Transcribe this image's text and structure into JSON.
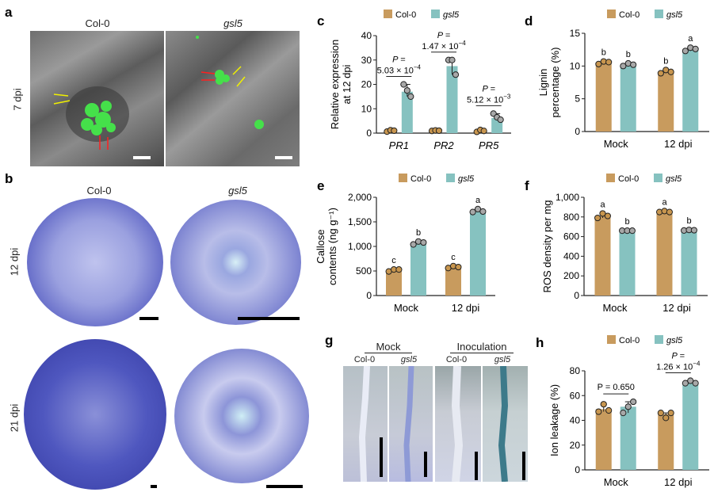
{
  "panels": {
    "a": {
      "label": "a",
      "col_header": "Col-0",
      "mut_header": "gsl5",
      "row_label": "7 dpi"
    },
    "b": {
      "label": "b",
      "col_header": "Col-0",
      "mut_header": "gsl5",
      "row1_label": "12 dpi",
      "row2_label": "21 dpi"
    },
    "g": {
      "label": "g",
      "group1": "Mock",
      "group2": "Inoculation",
      "sub": [
        "Col-0",
        "gsl5",
        "Col-0",
        "gsl5"
      ]
    }
  },
  "colors": {
    "col0": "#c89b5e",
    "gsl5": "#86c2c0",
    "col0_dot": "#c8964f",
    "gsl5_dot": "#a8a8a8"
  },
  "legend": {
    "col0": "Col-0",
    "gsl5": "gsl5"
  },
  "chart_data": [
    {
      "id": "c",
      "panel_label": "c",
      "type": "bar",
      "ylabel": [
        "Relative expression",
        "at 12 dpi"
      ],
      "categories": [
        "PR1",
        "PR2",
        "PR5"
      ],
      "italic_categories": true,
      "ylim": [
        0,
        40
      ],
      "ticks": [
        "0",
        "10",
        "20",
        "30",
        "40"
      ],
      "tick_values": [
        0,
        10,
        20,
        30,
        40
      ],
      "series": [
        {
          "name": "Col-0",
          "values": [
            1,
            1,
            1
          ],
          "points": [
            [
              0.6,
              1.2,
              1.0
            ],
            [
              0.9,
              1.1,
              1.0
            ],
            [
              0.5,
              1.3,
              0.9
            ]
          ]
        },
        {
          "name": "gsl5",
          "values": [
            17,
            27.5,
            6.2
          ],
          "points": [
            [
              20,
              17.5,
              15
            ],
            [
              30,
              30,
              24
            ],
            [
              8,
              6.5,
              5.5
            ]
          ]
        }
      ],
      "annotations": [
        {
          "category": 0,
          "p": "P =",
          "value": "5.03 × 10",
          "exp": "−4"
        },
        {
          "category": 1,
          "p": "P =",
          "value": "1.47 × 10",
          "exp": "−4"
        },
        {
          "category": 2,
          "p": "P =",
          "value": "5.12 × 10",
          "exp": "−3"
        }
      ]
    },
    {
      "id": "d",
      "panel_label": "d",
      "type": "bar",
      "ylabel": [
        "Lignin",
        "percentage (%)"
      ],
      "categories": [
        "Mock",
        "12 dpi"
      ],
      "ylim": [
        0,
        15
      ],
      "ticks": [
        "0",
        "5",
        "10",
        "15"
      ],
      "tick_values": [
        0,
        5,
        10,
        15
      ],
      "series": [
        {
          "name": "Col-0",
          "values": [
            10.5,
            9.1
          ],
          "points": [
            [
              10.3,
              10.7,
              10.6
            ],
            [
              8.9,
              9.4,
              9.1
            ]
          ],
          "letters": [
            "b",
            "b"
          ]
        },
        {
          "name": "gsl5",
          "values": [
            10.2,
            12.5
          ],
          "points": [
            [
              10.0,
              10.4,
              10.2
            ],
            [
              12.3,
              12.8,
              12.6
            ]
          ],
          "letters": [
            "b",
            "a"
          ]
        }
      ]
    },
    {
      "id": "e",
      "panel_label": "e",
      "type": "bar",
      "ylabel": [
        "Callose",
        "contents (ng g⁻¹)"
      ],
      "categories": [
        "Mock",
        "12 dpi"
      ],
      "ylim": [
        0,
        2000
      ],
      "ticks": [
        "0",
        "500",
        "1,000",
        "1,500",
        "2,000"
      ],
      "tick_values": [
        0,
        500,
        1000,
        1500,
        2000
      ],
      "series": [
        {
          "name": "Col-0",
          "values": [
            510,
            580
          ],
          "points": [
            [
              490,
              530,
              530
            ],
            [
              560,
              600,
              580
            ]
          ],
          "letters": [
            "c",
            "c"
          ]
        },
        {
          "name": "gsl5",
          "values": [
            1070,
            1720
          ],
          "points": [
            [
              1040,
              1100,
              1080
            ],
            [
              1700,
              1760,
              1710
            ]
          ],
          "letters": [
            "b",
            "a"
          ]
        }
      ]
    },
    {
      "id": "f",
      "panel_label": "f",
      "type": "bar",
      "ylabel": [
        "ROS density per mg"
      ],
      "categories": [
        "Mock",
        "12 dpi"
      ],
      "ylim": [
        0,
        1000
      ],
      "ticks": [
        "0",
        "200",
        "400",
        "600",
        "800",
        "1,000"
      ],
      "tick_values": [
        0,
        200,
        400,
        600,
        800,
        1000
      ],
      "series": [
        {
          "name": "Col-0",
          "values": [
            810,
            855
          ],
          "points": [
            [
              790,
              835,
              810
            ],
            [
              850,
              860,
              850
            ]
          ],
          "letters": [
            "a",
            "a"
          ]
        },
        {
          "name": "gsl5",
          "values": [
            660,
            665
          ],
          "points": [
            [
              660,
              660,
              660
            ],
            [
              662,
              668,
              665
            ]
          ],
          "letters": [
            "b",
            "b"
          ]
        }
      ]
    },
    {
      "id": "h",
      "panel_label": "h",
      "type": "bar",
      "ylabel": [
        "Ion leakage (%)"
      ],
      "categories": [
        "Mock",
        "12 dpi"
      ],
      "ylim": [
        0,
        80
      ],
      "ticks": [
        "0",
        "20",
        "40",
        "60",
        "80"
      ],
      "tick_values": [
        0,
        20,
        40,
        60,
        80
      ],
      "series": [
        {
          "name": "Col-0",
          "values": [
            49,
            45
          ],
          "points": [
            [
              47,
              53,
              48
            ],
            [
              46,
              42,
              46
            ]
          ]
        },
        {
          "name": "gsl5",
          "values": [
            51,
            70
          ],
          "points": [
            [
              46,
              51,
              55
            ],
            [
              70,
              72,
              70
            ]
          ]
        }
      ],
      "annotations": [
        {
          "category": 0,
          "p": "P = 0.650",
          "value": "",
          "exp": "",
          "inline": true
        },
        {
          "category": 1,
          "p": "P =",
          "value": "1.26 × 10",
          "exp": "−4"
        }
      ]
    }
  ]
}
